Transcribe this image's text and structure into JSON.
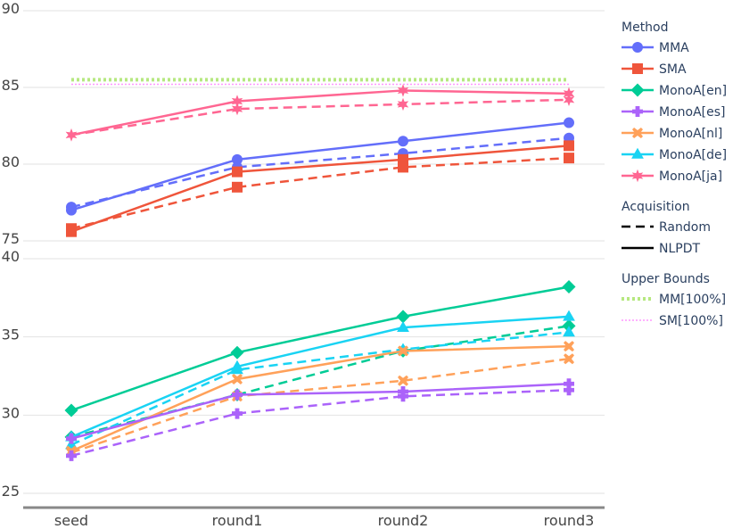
{
  "chart_data": {
    "type": "line",
    "x": [
      "seed",
      "round1",
      "round2",
      "round3"
    ],
    "panels": [
      {
        "id": "top",
        "ylim": [
          75,
          90
        ],
        "yticks": [
          75,
          80,
          85,
          90
        ],
        "upper_bounds": [
          {
            "name": "MM[100%]",
            "value": 85.5,
            "color": "#b6e880",
            "dash": "dot"
          },
          {
            "name": "SM[100%]",
            "value": 85.2,
            "color": "#ff97ff",
            "dash": "dot"
          }
        ],
        "series": [
          {
            "name": "MMA",
            "method": "MMA",
            "acquisition": "NLPDT",
            "values": [
              77.0,
              80.3,
              81.5,
              82.7
            ]
          },
          {
            "name": "MMA",
            "method": "MMA",
            "acquisition": "Random",
            "values": [
              77.2,
              79.8,
              80.7,
              81.7
            ]
          },
          {
            "name": "SMA",
            "method": "SMA",
            "acquisition": "NLPDT",
            "values": [
              75.6,
              79.5,
              80.3,
              81.2
            ]
          },
          {
            "name": "SMA",
            "method": "SMA",
            "acquisition": "Random",
            "values": [
              75.8,
              78.5,
              79.8,
              80.4
            ]
          },
          {
            "name": "MonoA[ja]",
            "method": "MonoA[ja]",
            "acquisition": "NLPDT",
            "values": [
              81.9,
              84.1,
              84.8,
              84.6
            ]
          },
          {
            "name": "MonoA[ja]",
            "method": "MonoA[ja]",
            "acquisition": "Random",
            "values": [
              81.9,
              83.6,
              83.9,
              84.2
            ]
          }
        ]
      },
      {
        "id": "bottom",
        "ylim": [
          24.2,
          40
        ],
        "yticks": [
          25,
          30,
          35,
          40
        ],
        "series": [
          {
            "name": "MonoA[en]",
            "method": "MonoA[en]",
            "acquisition": "NLPDT",
            "values": [
              30.3,
              34.0,
              36.3,
              38.2
            ]
          },
          {
            "name": "MonoA[en]",
            "method": "MonoA[en]",
            "acquisition": "Random",
            "values": [
              28.6,
              31.3,
              34.1,
              35.7
            ]
          },
          {
            "name": "MonoA[de]",
            "method": "MonoA[de]",
            "acquisition": "NLPDT",
            "values": [
              28.6,
              33.1,
              35.6,
              36.3
            ]
          },
          {
            "name": "MonoA[de]",
            "method": "MonoA[de]",
            "acquisition": "Random",
            "values": [
              28.1,
              32.9,
              34.2,
              35.3
            ]
          },
          {
            "name": "MonoA[nl]",
            "method": "MonoA[nl]",
            "acquisition": "NLPDT",
            "values": [
              27.7,
              32.3,
              34.1,
              34.4
            ]
          },
          {
            "name": "MonoA[nl]",
            "method": "MonoA[nl]",
            "acquisition": "Random",
            "values": [
              27.6,
              31.2,
              32.2,
              33.6
            ]
          },
          {
            "name": "MonoA[es]",
            "method": "MonoA[es]",
            "acquisition": "NLPDT",
            "values": [
              28.5,
              31.3,
              31.5,
              32.0
            ]
          },
          {
            "name": "MonoA[es]",
            "method": "MonoA[es]",
            "acquisition": "Random",
            "values": [
              27.4,
              30.1,
              31.2,
              31.6
            ]
          }
        ]
      }
    ],
    "methods": [
      {
        "name": "MMA",
        "color": "#636efa",
        "symbol": "circle"
      },
      {
        "name": "SMA",
        "color": "#ef553b",
        "symbol": "square"
      },
      {
        "name": "MonoA[en]",
        "color": "#00cc96",
        "symbol": "diamond"
      },
      {
        "name": "MonoA[es]",
        "color": "#ab63fa",
        "symbol": "cross"
      },
      {
        "name": "MonoA[nl]",
        "color": "#ffa15a",
        "symbol": "x"
      },
      {
        "name": "MonoA[de]",
        "color": "#19d3f3",
        "symbol": "triangle-up"
      },
      {
        "name": "MonoA[ja]",
        "color": "#ff6692",
        "symbol": "star"
      }
    ],
    "legend": {
      "placement": "right",
      "groups": [
        {
          "title": "Method",
          "items": [
            "MMA",
            "SMA",
            "MonoA[en]",
            "MonoA[es]",
            "MonoA[nl]",
            "MonoA[de]",
            "MonoA[ja]"
          ]
        },
        {
          "title": "Acquisition",
          "items": [
            {
              "label": "Random",
              "dash": "dash"
            },
            {
              "label": "NLPDT",
              "dash": "solid"
            }
          ]
        },
        {
          "title": "Upper Bounds",
          "items": [
            {
              "label": "MM[100%]",
              "color": "#b6e880",
              "dash": "dot"
            },
            {
              "label": "SM[100%]",
              "color": "#ff97ff",
              "dash": "dot"
            }
          ]
        }
      ]
    },
    "grid": true
  }
}
